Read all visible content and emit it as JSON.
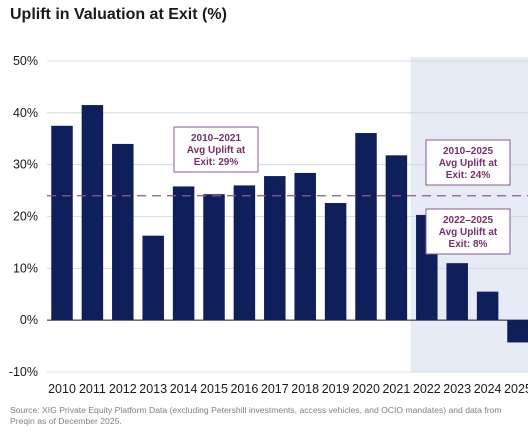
{
  "chart_data": {
    "type": "bar",
    "title": "Uplift in Valuation at Exit (%)",
    "categories": [
      "2010",
      "2011",
      "2012",
      "2013",
      "2014",
      "2015",
      "2016",
      "2017",
      "2018",
      "2019",
      "2020",
      "2021",
      "2022",
      "2023",
      "2024",
      "2025"
    ],
    "series": [
      {
        "values": [
          37.5,
          41.5,
          34,
          16.3,
          25.8,
          24.3,
          26,
          27.8,
          28.4,
          22.6,
          36.1,
          31.8,
          20.3,
          11,
          5.5,
          -4.3
        ]
      }
    ],
    "ylim": [
      -10,
      50
    ],
    "yticks": [
      "-10%",
      "0%",
      "10%",
      "20%",
      "30%",
      "40%",
      "50%"
    ],
    "ytick_values": [
      -10,
      0,
      10,
      20,
      30,
      40,
      50
    ],
    "reference_line": {
      "value": 24,
      "style": "dashed"
    },
    "shaded_range": [
      "2022",
      "2025"
    ],
    "annotations": [
      {
        "lines": [
          "2010–2021",
          "Avg Uplift at",
          "Exit: 29%"
        ],
        "anchor_category": "2015"
      },
      {
        "lines": [
          "2010–2025",
          "Avg Uplift at",
          "Exit: 24%"
        ],
        "anchor_category": "2024"
      },
      {
        "lines": [
          "2022–2025",
          "Avg Uplift at",
          "Exit: 8%"
        ],
        "anchor_category": "2024"
      }
    ],
    "colors": {
      "bar": "#0f1f5c",
      "shade": "#e6ebf5",
      "reference_line": "#8e5a8e",
      "annotation": "#7a2f6b"
    }
  },
  "source_note": "Source: XIG Private Equity Platform Data (excluding Petershill investments, access vehicles, and OCIO mandates) and data from Preqin as of December 2025."
}
